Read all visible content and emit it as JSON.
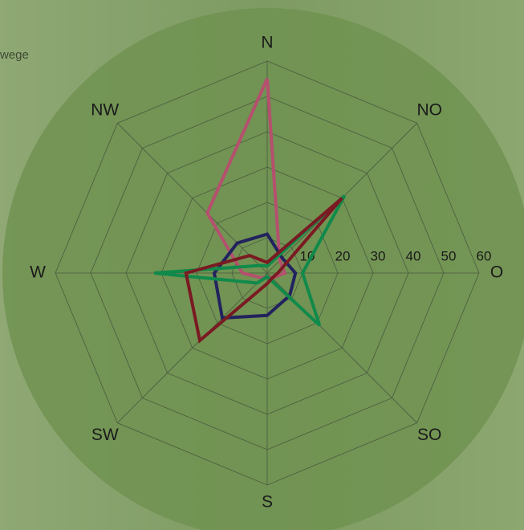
{
  "chart_data": {
    "type": "radar",
    "header_text": "wege",
    "categories": [
      "N",
      "NO",
      "O",
      "SO",
      "S",
      "SW",
      "W",
      "NW"
    ],
    "rlim": [
      0,
      60
    ],
    "rticks": [
      10,
      20,
      30,
      40,
      50,
      60
    ],
    "grid": true,
    "series": [
      {
        "color": "#b5506e",
        "values": [
          55,
          5,
          5,
          2,
          1,
          2,
          7,
          24
        ]
      },
      {
        "color": "#22235e",
        "values": [
          11,
          6,
          8,
          9,
          12,
          18,
          15,
          12
        ]
      },
      {
        "color": "#108a4a",
        "values": [
          2,
          31,
          10,
          21,
          1,
          4,
          32,
          3
        ]
      },
      {
        "color": "#7a1a22",
        "values": [
          3,
          30,
          3,
          2,
          3,
          27,
          23,
          7
        ]
      }
    ]
  }
}
